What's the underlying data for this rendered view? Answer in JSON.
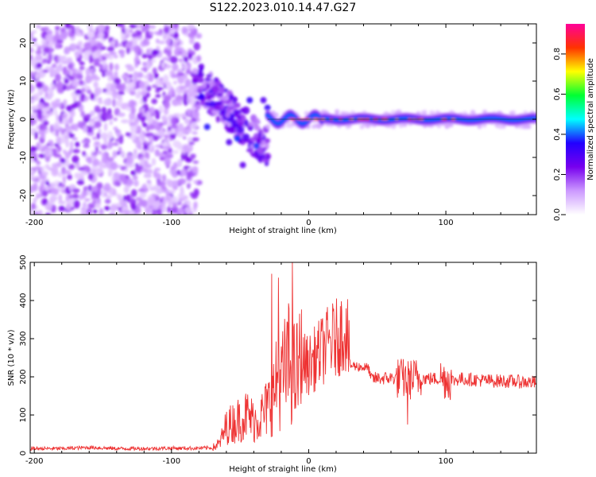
{
  "title": "S122.2023.010.14.47.G27",
  "chart_data": [
    {
      "type": "heatmap",
      "xlabel": "Height of straight line (km)",
      "ylabel": "Frequency (Hz)",
      "xlim": [
        -203,
        166
      ],
      "ylim": [
        -25,
        25
      ],
      "xticks": [
        -200,
        -100,
        0,
        100
      ],
      "yticks": [
        -20,
        -10,
        0,
        10,
        20
      ],
      "colorbar": {
        "label": "Normalized spectral amplitude",
        "range": [
          0,
          0.95
        ],
        "ticks": [
          0.0,
          0.2,
          0.4,
          0.6,
          0.8
        ],
        "colors": [
          "#ffffff",
          "#cc99ff",
          "#7700ee",
          "#2200ff",
          "#00ffff",
          "#00ff33",
          "#ffff00",
          "#ff3300",
          "#ff0099"
        ]
      },
      "features": {
        "noise_region_x": [
          -203,
          -80
        ],
        "scattered_region_x": [
          -80,
          -30
        ],
        "ridge_x": [
          -30,
          166
        ],
        "ridge_frequency_hz": 0
      }
    },
    {
      "type": "line",
      "xlabel": "Height of straight line (km)",
      "ylabel": "SNR (10 * v/v)",
      "xlim": [
        -203,
        166
      ],
      "ylim": [
        0,
        500
      ],
      "xticks": [
        -200,
        -100,
        0,
        100
      ],
      "yticks": [
        0,
        100,
        200,
        300,
        400,
        500
      ],
      "line_color": "#ee3333",
      "series": [
        {
          "x": [
            -203,
            -180,
            -160,
            -140,
            -120,
            -100,
            -80,
            -70,
            -65,
            -60,
            -55,
            -50,
            -45,
            -40,
            -35,
            -30,
            -27,
            -25,
            -22,
            -20,
            -15,
            -12,
            -10,
            -5,
            0,
            5,
            10,
            15,
            20,
            25,
            28,
            30,
            40,
            44,
            45,
            60,
            70,
            72,
            75,
            80,
            90,
            100,
            105,
            110,
            130,
            150,
            166
          ],
          "y": [
            12,
            12,
            15,
            12,
            12,
            13,
            13,
            14,
            25,
            70,
            80,
            90,
            100,
            85,
            95,
            120,
            140,
            160,
            200,
            185,
            240,
            220,
            200,
            240,
            230,
            250,
            270,
            290,
            300,
            320,
            325,
            230,
            225,
            222,
            195,
            197,
            195,
            190,
            195,
            197,
            195,
            195,
            190,
            195,
            190,
            188,
            185
          ]
        }
      ],
      "spikes": [
        {
          "x": -27,
          "y": 470
        },
        {
          "x": -22,
          "y": 460
        },
        {
          "x": -12,
          "y": 500
        },
        {
          "x": 72,
          "y": 75
        }
      ]
    }
  ]
}
